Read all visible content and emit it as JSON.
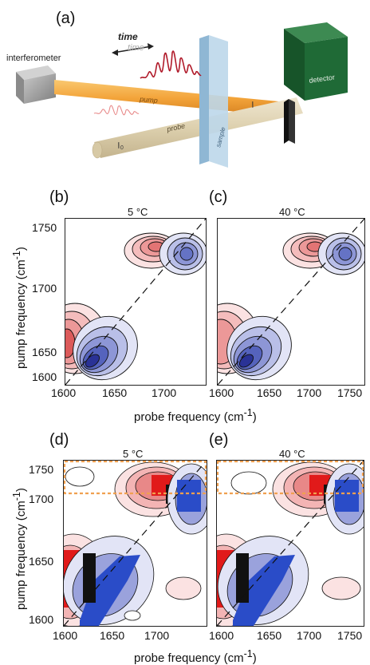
{
  "schematic": {
    "panel": "(a)",
    "labels": {
      "interferometer": "interferometer",
      "time": "time",
      "time_shadow": "time",
      "pump": "pump",
      "probe": "probe",
      "sample": "sample",
      "detector": "detector",
      "I": "I",
      "I0": "I",
      "I0_sub": "0"
    }
  },
  "panels": {
    "b": {
      "label": "(b)",
      "title": "5 °C"
    },
    "c": {
      "label": "(c)",
      "title": "40 °C"
    },
    "d": {
      "label": "(d)",
      "title": "5 °C"
    },
    "e": {
      "label": "(e)",
      "title": "40 °C"
    }
  },
  "axes": {
    "ylabel": "pump frequency (cm",
    "xlabel": "probe frequency (cm",
    "unit_exp": "-1",
    "unit_close": ")",
    "top_y_ticks": [
      "1750",
      "1700",
      "1650",
      "1600"
    ],
    "top_x_ticks_b": [
      "1600",
      "1650",
      "1700"
    ],
    "top_x_ticks_c": [
      "1600",
      "1650",
      "1700",
      "1750"
    ],
    "bot_y_ticks": [
      "1750",
      "1700",
      "1650",
      "1600"
    ],
    "bot_x_ticks_d": [
      "1600",
      "1650",
      "1700"
    ],
    "bot_x_ticks_e": [
      "1600",
      "1650",
      "1700",
      "1750"
    ]
  },
  "colors": {
    "positive": "#d9364a",
    "negative": "#3b4fb5",
    "highlight_box": "#f0a050",
    "pump_beam": "#f3a43a",
    "probe_beam": "#e2d4b4",
    "detector": "#1f6a36",
    "sample": "#bcd7ea",
    "interferometer": "#9a9a9a"
  }
}
